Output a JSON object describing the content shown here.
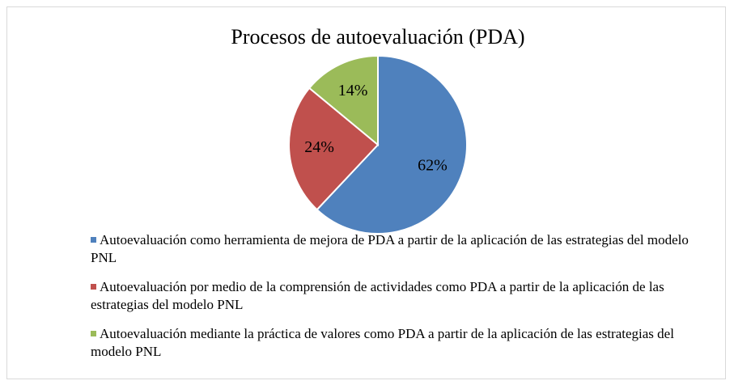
{
  "chart_data": {
    "type": "pie",
    "title": "Procesos de autoevaluación (PDA)",
    "categories": [
      "Autoevaluación como herramienta de mejora de PDA a partir de la aplicación de las estrategias del modelo PNL",
      "Autoevaluación por medio de la comprensión de actividades como PDA a partir de la aplicación de las estrategias del modelo PNL",
      "Autoevaluación mediante la práctica de valores como PDA a partir de la aplicación de las estrategias del modelo PNL"
    ],
    "values": [
      62,
      24,
      14
    ],
    "value_labels": [
      "62%",
      "24%",
      "14%"
    ],
    "colors": [
      "#4f81bd",
      "#c0504d",
      "#9bbb59"
    ],
    "legend": "bottom"
  }
}
